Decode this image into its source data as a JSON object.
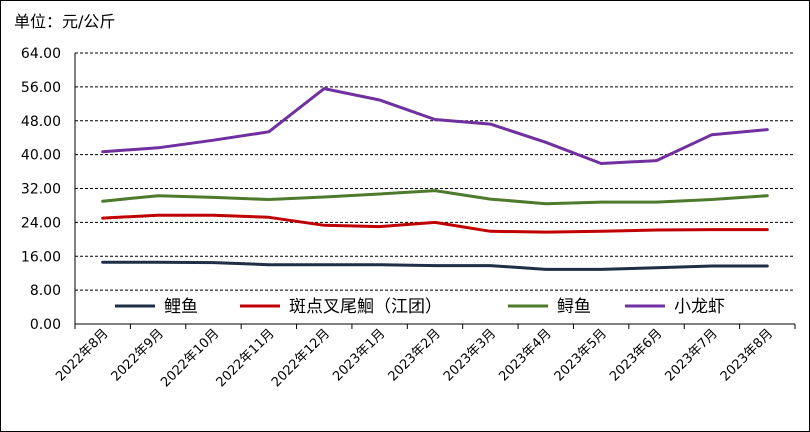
{
  "unit_label": "单位：元/公斤",
  "chart_data": {
    "type": "line",
    "title": "",
    "xlabel": "",
    "ylabel": "",
    "ylim": [
      0,
      64
    ],
    "yticks": [
      "0.00",
      "8.00",
      "16.00",
      "24.00",
      "32.00",
      "40.00",
      "48.00",
      "56.00",
      "64.00"
    ],
    "categories": [
      "2022年8月",
      "2022年9月",
      "2022年10月",
      "2022年11月",
      "2022年12月",
      "2023年1月",
      "2023年2月",
      "2023年3月",
      "2023年4月",
      "2023年5月",
      "2023年6月",
      "2023年7月",
      "2023年8月"
    ],
    "grid": true,
    "legend_position": "bottom-inside",
    "series": [
      {
        "name": "鲤鱼",
        "color": "#1f2f45",
        "values": [
          14.6,
          14.6,
          14.5,
          14.0,
          14.0,
          14.0,
          13.8,
          13.8,
          12.9,
          12.9,
          13.3,
          13.7,
          13.7
        ]
      },
      {
        "name": "斑点叉尾鮰（江团）",
        "color": "#c00000",
        "values": [
          25.0,
          25.7,
          25.7,
          25.2,
          23.3,
          23.0,
          24.0,
          21.9,
          21.7,
          21.9,
          22.2,
          22.3,
          22.3
        ]
      },
      {
        "name": "鲟鱼",
        "color": "#4e7a2e",
        "values": [
          29.0,
          30.3,
          29.9,
          29.4,
          30.0,
          30.7,
          31.5,
          29.5,
          28.4,
          28.8,
          28.8,
          29.4,
          30.3
        ]
      },
      {
        "name": "小龙虾",
        "color": "#7030a0",
        "values": [
          40.7,
          41.6,
          43.4,
          45.4,
          55.6,
          52.9,
          48.3,
          47.2,
          42.9,
          37.9,
          38.6,
          44.7,
          45.9
        ]
      }
    ]
  }
}
